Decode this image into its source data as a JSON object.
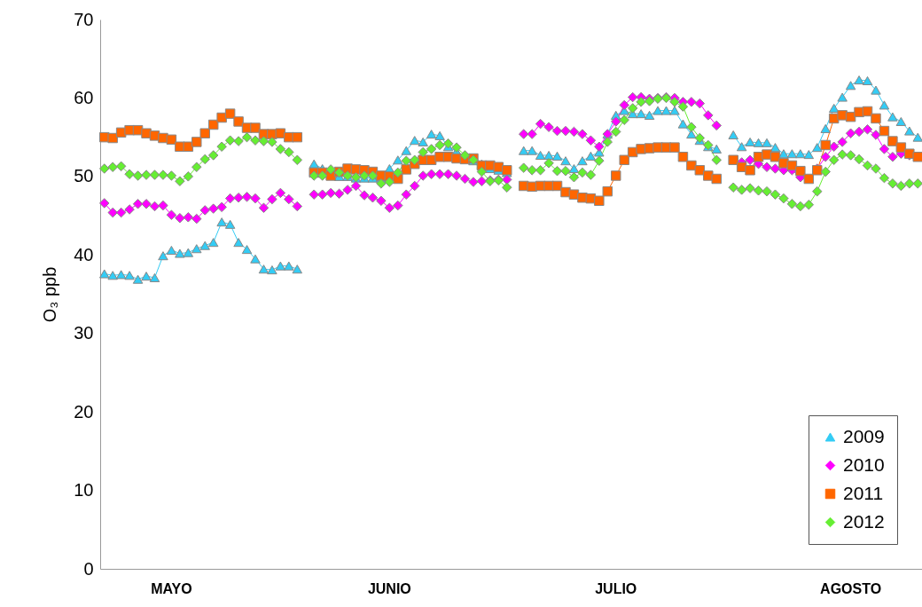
{
  "chart_data": {
    "type": "line",
    "ylabel": "O₃ ppb",
    "ylim": [
      0,
      70
    ],
    "yticks": [
      0,
      10,
      20,
      30,
      40,
      50,
      60,
      70
    ],
    "grid": false,
    "legend": "bottom right",
    "categories": [
      null,
      null,
      null,
      null,
      null,
      null,
      null,
      null,
      "MAYO",
      null,
      null,
      null,
      null,
      null,
      null,
      null,
      null,
      null,
      null,
      null,
      null,
      null,
      null,
      null,
      null,
      null,
      null,
      null,
      null,
      null,
      null,
      null,
      null,
      null,
      "JUNIO",
      null,
      null,
      null,
      null,
      null,
      null,
      null,
      null,
      null,
      null,
      null,
      null,
      null,
      null,
      null,
      null,
      null,
      null,
      null,
      null,
      null,
      null,
      null,
      null,
      null,
      null,
      "JULIO",
      null,
      null,
      null,
      null,
      null,
      null,
      null,
      null,
      null,
      null,
      null,
      null,
      null,
      null,
      null,
      null,
      null,
      null,
      null,
      null,
      null,
      null,
      null,
      null,
      null,
      null,
      null,
      "AGOSTO",
      null,
      null,
      null,
      null,
      null,
      null,
      null,
      null
    ],
    "series": [
      {
        "name": "2009",
        "color": "#33ccf5",
        "marker": "triangle",
        "values": [
          37.6,
          37.4,
          37.5,
          37.4,
          36.9,
          37.3,
          37.1,
          39.9,
          40.6,
          40.2,
          40.3,
          40.8,
          41.2,
          41.6,
          44.2,
          43.9,
          41.6,
          40.7,
          39.5,
          38.2,
          38.1,
          38.6,
          38.6,
          38.2,
          null,
          51.6,
          51.0,
          50.5,
          50.0,
          50.0,
          49.8,
          49.8,
          49.8,
          49.8,
          51.0,
          52.1,
          53.3,
          54.6,
          54.4,
          55.4,
          55.2,
          53.8,
          53.2,
          52.5,
          52.0,
          51.6,
          51.0,
          50.8,
          50.5,
          null,
          53.3,
          53.3,
          52.7,
          52.7,
          52.6,
          52.0,
          51.0,
          52.0,
          52.6,
          53.1,
          55.4,
          57.8,
          58.4,
          58.0,
          58.0,
          57.8,
          58.4,
          58.4,
          58.4,
          56.7,
          55.4,
          54.6,
          53.8,
          53.5,
          null,
          55.3,
          53.8,
          54.4,
          54.3,
          54.3,
          53.7,
          52.9,
          52.9,
          52.9,
          52.8,
          53.7,
          56.1,
          58.7,
          60.1,
          61.6,
          62.3,
          62.2,
          61.0,
          59.1,
          57.6,
          57.0,
          55.8,
          55.0
        ]
      },
      {
        "name": "2010",
        "color": "#ff00ff",
        "marker": "diamond",
        "values": [
          46.6,
          45.4,
          45.4,
          45.8,
          46.5,
          46.5,
          46.2,
          46.3,
          45.1,
          44.7,
          44.8,
          44.6,
          45.7,
          45.9,
          46.1,
          47.2,
          47.3,
          47.4,
          47.2,
          46.0,
          47.1,
          47.9,
          47.1,
          46.2,
          null,
          47.7,
          47.7,
          47.9,
          47.8,
          48.3,
          48.8,
          47.6,
          47.3,
          46.9,
          46.0,
          46.3,
          47.7,
          48.8,
          50.1,
          50.3,
          50.3,
          50.3,
          50.1,
          49.7,
          49.3,
          49.4,
          49.5,
          49.6,
          49.6,
          null,
          55.4,
          55.4,
          56.7,
          56.3,
          55.8,
          55.8,
          55.7,
          55.4,
          54.6,
          53.8,
          55.4,
          57.0,
          59.1,
          60.1,
          60.1,
          59.9,
          60.0,
          60.1,
          60.0,
          59.5,
          59.5,
          59.3,
          57.8,
          56.5,
          null,
          null,
          51.8,
          52.1,
          51.6,
          51.2,
          51.0,
          50.8,
          50.8,
          49.9,
          null,
          51.0,
          52.5,
          53.8,
          54.4,
          55.5,
          55.7,
          56.0,
          55.3,
          53.5,
          52.5,
          52.9,
          52.7,
          null
        ]
      },
      {
        "name": "2011",
        "color": "#ff6600",
        "marker": "square",
        "values": [
          55.0,
          54.9,
          55.6,
          55.9,
          55.9,
          55.5,
          55.2,
          54.9,
          54.7,
          53.8,
          53.8,
          54.4,
          55.5,
          56.6,
          57.5,
          58.0,
          57.0,
          56.2,
          56.2,
          55.4,
          55.4,
          55.5,
          55.0,
          55.0,
          null,
          50.5,
          50.5,
          50.1,
          50.6,
          51.0,
          50.9,
          50.8,
          50.6,
          50.1,
          50.0,
          49.7,
          50.9,
          51.6,
          52.1,
          52.1,
          52.5,
          52.5,
          52.3,
          52.2,
          52.3,
          51.4,
          51.4,
          51.2,
          50.8,
          null,
          48.8,
          48.7,
          48.8,
          48.8,
          48.8,
          48.0,
          47.7,
          47.3,
          47.2,
          46.9,
          48.1,
          50.1,
          52.1,
          53.1,
          53.5,
          53.6,
          53.7,
          53.7,
          53.7,
          52.5,
          51.4,
          50.8,
          50.1,
          49.7,
          null,
          52.1,
          51.2,
          50.8,
          52.5,
          52.8,
          52.5,
          51.7,
          51.4,
          50.7,
          49.7,
          50.8,
          54.0,
          57.4,
          57.8,
          57.6,
          58.2,
          58.3,
          57.4,
          55.8,
          54.5,
          53.7,
          52.9,
          52.5
        ]
      },
      {
        "name": "2012",
        "color": "#66ee33",
        "marker": "diamond",
        "values": [
          51.0,
          51.2,
          51.3,
          50.3,
          50.1,
          50.2,
          50.2,
          50.2,
          50.1,
          49.4,
          50.0,
          51.2,
          52.2,
          52.7,
          53.8,
          54.6,
          54.5,
          55.0,
          54.6,
          54.5,
          54.4,
          53.5,
          53.1,
          52.1,
          null,
          50.1,
          50.1,
          50.9,
          50.5,
          50.1,
          49.9,
          50.1,
          50.1,
          49.1,
          49.3,
          50.5,
          52.0,
          52.1,
          53.1,
          53.5,
          54.0,
          54.2,
          53.7,
          52.7,
          52.1,
          50.6,
          49.4,
          49.5,
          48.6,
          null,
          51.1,
          50.8,
          50.8,
          51.7,
          50.7,
          50.7,
          49.9,
          50.5,
          50.2,
          52.0,
          54.4,
          55.7,
          57.2,
          58.7,
          59.5,
          59.6,
          59.9,
          60.0,
          59.5,
          58.9,
          56.3,
          54.9,
          54.0,
          52.1,
          null,
          48.6,
          48.3,
          48.5,
          48.2,
          48.1,
          47.7,
          47.2,
          46.5,
          46.2,
          46.4,
          48.1,
          50.6,
          52.1,
          52.8,
          52.7,
          52.2,
          51.4,
          51.0,
          49.8,
          49.1,
          48.8,
          49.1,
          49.1
        ]
      }
    ]
  }
}
